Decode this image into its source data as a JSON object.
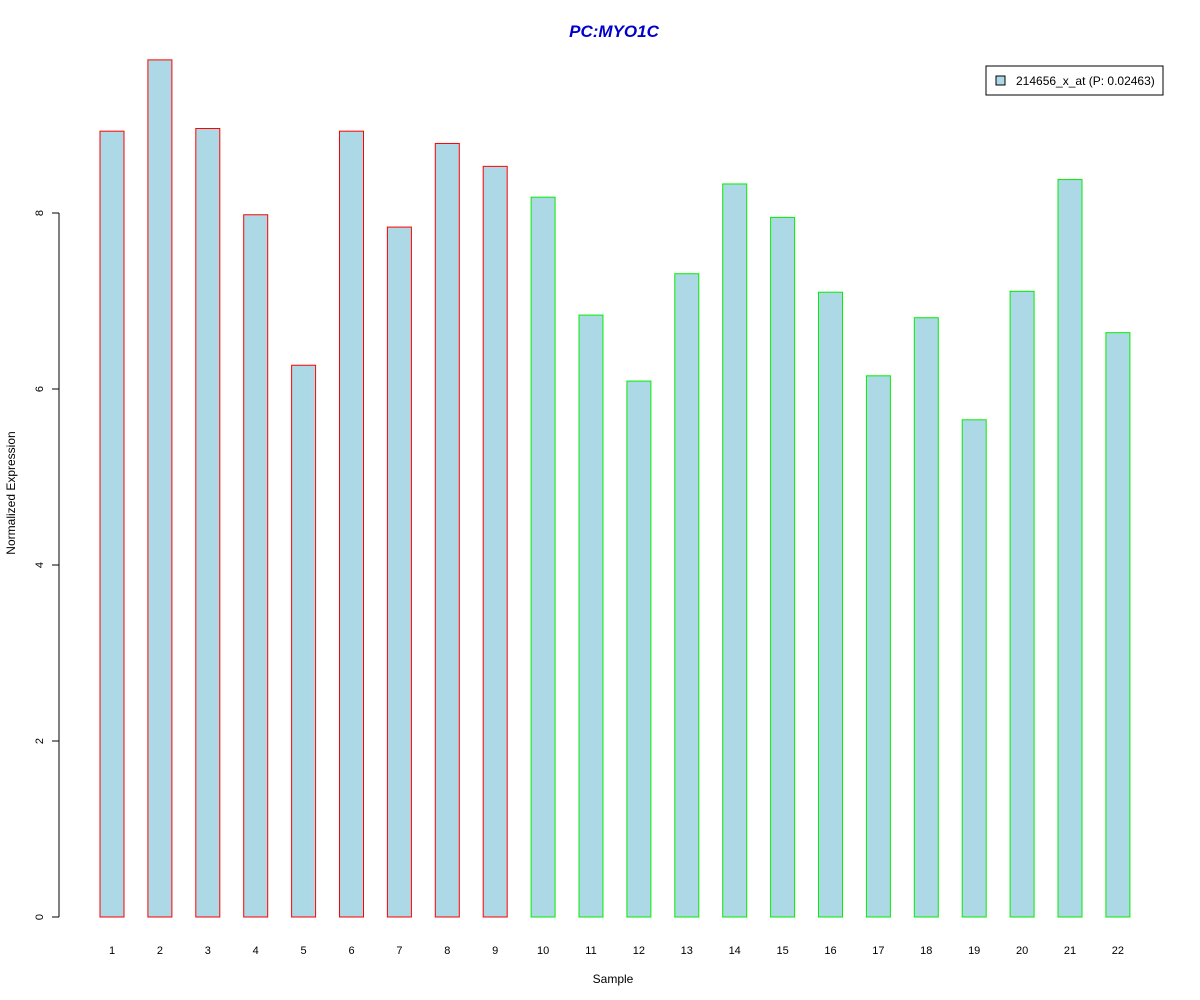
{
  "chart_data": {
    "type": "bar",
    "title": "PC:MYO1C",
    "xlabel": "Sample",
    "ylabel": "Normalized Expression",
    "categories": [
      "1",
      "2",
      "3",
      "4",
      "5",
      "6",
      "7",
      "8",
      "9",
      "10",
      "11",
      "12",
      "13",
      "14",
      "15",
      "16",
      "17",
      "18",
      "19",
      "20",
      "21",
      "22"
    ],
    "series": [
      {
        "name": "214656_x_at (P: 0.02463)",
        "values": [
          8.93,
          9.74,
          8.96,
          7.98,
          6.27,
          8.93,
          7.84,
          8.79,
          8.53,
          8.18,
          6.84,
          6.09,
          7.31,
          8.33,
          7.95,
          7.1,
          6.15,
          6.81,
          5.65,
          7.11,
          8.38,
          6.64
        ]
      }
    ],
    "bar_fill": "#add8e6",
    "bar_borders": [
      "#ff0000",
      "#ff0000",
      "#ff0000",
      "#ff0000",
      "#ff0000",
      "#ff0000",
      "#ff0000",
      "#ff0000",
      "#ff0000",
      "#00ee00",
      "#00ee00",
      "#00ee00",
      "#00ee00",
      "#00ee00",
      "#00ee00",
      "#00ee00",
      "#00ee00",
      "#00ee00",
      "#00ee00",
      "#00ee00",
      "#00ee00",
      "#00ee00"
    ],
    "title_color": "#0000cc",
    "yticks": [
      "0",
      "2",
      "4",
      "6",
      "8"
    ],
    "ylim": [
      0,
      9.74
    ],
    "grid": false,
    "legend_position": "top-right"
  }
}
